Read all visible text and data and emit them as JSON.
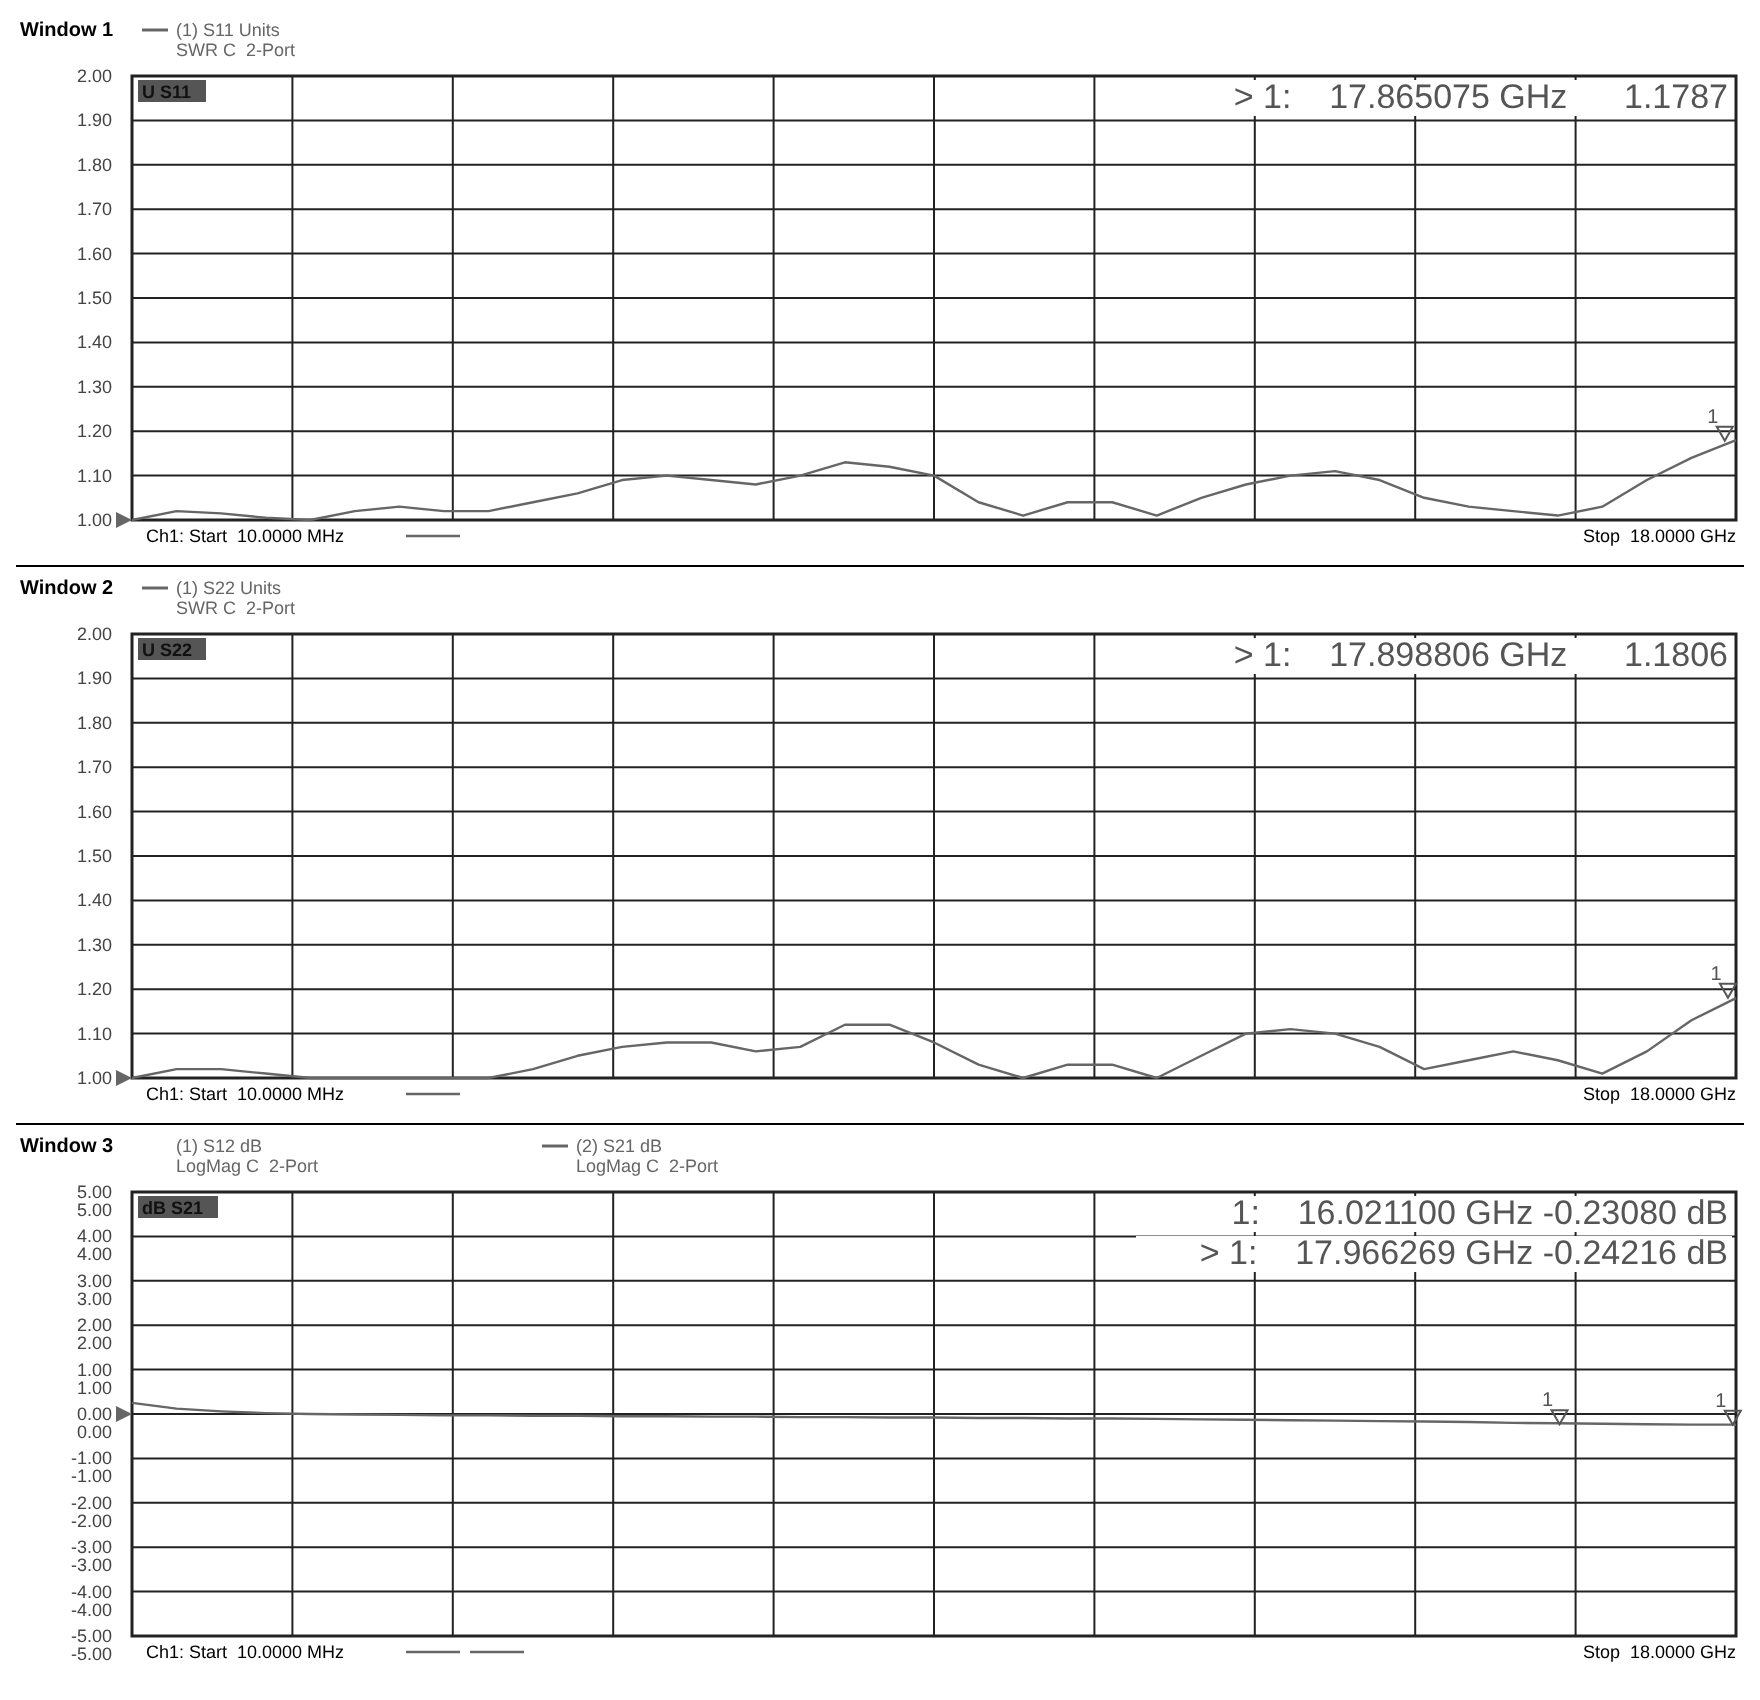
{
  "chart_data": [
    {
      "type": "line",
      "title": "Window 1",
      "categories": [
        null,
        null,
        null,
        null,
        null,
        null,
        null,
        null,
        null,
        null,
        null,
        null,
        null,
        null,
        null,
        null,
        null,
        null,
        null,
        null,
        null,
        null,
        null,
        null,
        null,
        null,
        null,
        null,
        null,
        null,
        null,
        null,
        null,
        null,
        null,
        null,
        null
      ],
      "ylim": [
        1,
        2
      ],
      "yticks": [
        {
          "value": 1,
          "label": "1.00"
        },
        {
          "value": 1.1,
          "label": "1.10"
        },
        {
          "value": 1.2,
          "label": "1.20"
        },
        {
          "value": 1.3,
          "label": "1.30"
        },
        {
          "value": 1.4,
          "label": "1.40"
        },
        {
          "value": 1.5,
          "label": "1.50"
        },
        {
          "value": 1.6,
          "label": "1.60"
        },
        {
          "value": 1.7,
          "label": "1.70"
        },
        {
          "value": 1.8,
          "label": "1.80"
        },
        {
          "value": 1.9,
          "label": "1.90"
        },
        {
          "value": 2,
          "label": "2.00"
        }
      ],
      "grid": true,
      "tick_labels": "y",
      "marker": "none",
      "line_style": "solid",
      "series": [
        {
          "name": "(1) S11 Units\nSWR C  2-Port",
          "color": "#666666",
          "values": [
            1.0,
            1.02,
            1.015,
            1.005,
            1.0,
            1.02,
            1.03,
            1.02,
            1.02,
            1.04,
            1.06,
            1.09,
            1.1,
            1.09,
            1.08,
            1.1,
            1.13,
            1.12,
            1.1,
            1.04,
            1.01,
            1.04,
            1.04,
            1.01,
            1.05,
            1.08,
            1.1,
            1.11,
            1.09,
            1.05,
            1.03,
            1.02,
            1.01,
            1.03,
            1.09,
            1.14,
            1.18
          ]
        }
      ],
      "annotations": [
        "U S11",
        "Ch1: Start  10.0000 MHz",
        "Stop  18.0000 GHz",
        "> 1:    17.865075 GHz      1.1787",
        {
          "text": "1",
          "y": 1.1787
        }
      ]
    },
    {
      "type": "line",
      "title": "Window 2",
      "categories": [
        null,
        null,
        null,
        null,
        null,
        null,
        null,
        null,
        null,
        null,
        null,
        null,
        null,
        null,
        null,
        null,
        null,
        null,
        null,
        null,
        null,
        null,
        null,
        null,
        null,
        null,
        null,
        null,
        null,
        null,
        null,
        null,
        null,
        null,
        null,
        null,
        null
      ],
      "ylim": [
        1,
        2
      ],
      "yticks": [
        {
          "value": 1,
          "label": "1.00"
        },
        {
          "value": 1.1,
          "label": "1.10"
        },
        {
          "value": 1.2,
          "label": "1.20"
        },
        {
          "value": 1.3,
          "label": "1.30"
        },
        {
          "value": 1.4,
          "label": "1.40"
        },
        {
          "value": 1.5,
          "label": "1.50"
        },
        {
          "value": 1.6,
          "label": "1.60"
        },
        {
          "value": 1.7,
          "label": "1.70"
        },
        {
          "value": 1.8,
          "label": "1.80"
        },
        {
          "value": 1.9,
          "label": "1.90"
        },
        {
          "value": 2,
          "label": "2.00"
        }
      ],
      "grid": true,
      "tick_labels": "y",
      "marker": "none",
      "line_style": "solid",
      "series": [
        {
          "name": "(1) S22 Units\nSWR C  2-Port",
          "color": "#666666",
          "values": [
            1.0,
            1.02,
            1.02,
            1.01,
            1.0,
            1.0,
            1.0,
            1.0,
            1.0,
            1.02,
            1.05,
            1.07,
            1.08,
            1.08,
            1.06,
            1.07,
            1.12,
            1.12,
            1.08,
            1.03,
            1.0,
            1.03,
            1.03,
            1.0,
            1.05,
            1.1,
            1.11,
            1.1,
            1.07,
            1.02,
            1.04,
            1.06,
            1.04,
            1.01,
            1.06,
            1.13,
            1.18
          ]
        }
      ],
      "annotations": [
        "U S22",
        "Ch1: Start  10.0000 MHz",
        "Stop  18.0000 GHz",
        "> 1:    17.898806 GHz      1.1806",
        {
          "text": "1",
          "y": 1.1806
        }
      ]
    },
    {
      "type": "line",
      "title": "Window 3",
      "categories": [
        null,
        null,
        null,
        null,
        null,
        null,
        null,
        null,
        null,
        null,
        null,
        null,
        null,
        null,
        null,
        null,
        null,
        null,
        null,
        null,
        null,
        null,
        null,
        null,
        null,
        null,
        null,
        null,
        null,
        null,
        null,
        null,
        null,
        null,
        null,
        null,
        null
      ],
      "ylim": [
        -5,
        5
      ],
      "yticks": [
        {
          "value": -5,
          "label": "-5.00"
        },
        {
          "value": -4,
          "label": "-4.00"
        },
        {
          "value": -3,
          "label": "-3.00"
        },
        {
          "value": -2,
          "label": "-2.00"
        },
        {
          "value": -1,
          "label": "-1.00"
        },
        {
          "value": 0,
          "label": "0.00"
        },
        {
          "value": 1,
          "label": "1.00"
        },
        {
          "value": 2,
          "label": "2.00"
        },
        {
          "value": 3,
          "label": "3.00"
        },
        {
          "value": 4,
          "label": "4.00"
        },
        {
          "value": 5,
          "label": "5.00"
        }
      ],
      "grid": true,
      "tick_labels": "y",
      "marker": "none",
      "line_style": "solid",
      "subtitle": "(1) S12 dB\nLogMag C  2-Port",
      "series": [
        {
          "name": "(2) S21 dB\nLogMag C  2-Port",
          "color": "#666666",
          "values": [
            0.25,
            0.12,
            0.06,
            0.02,
            0.0,
            -0.01,
            -0.02,
            -0.03,
            -0.03,
            -0.04,
            -0.04,
            -0.05,
            -0.05,
            -0.06,
            -0.06,
            -0.07,
            -0.07,
            -0.08,
            -0.08,
            -0.09,
            -0.09,
            -0.1,
            -0.1,
            -0.11,
            -0.12,
            -0.13,
            -0.14,
            -0.15,
            -0.16,
            -0.17,
            -0.18,
            -0.2,
            -0.21,
            -0.22,
            -0.23,
            -0.24,
            -0.24
          ]
        }
      ],
      "annotations": [
        "dB S21",
        "Ch1: Start  10.0000 MHz",
        "Stop  18.0000 GHz",
        "1:    16.021100 GHz -0.23080 dB",
        "> 1:    17.966269 GHz -0.24216 dB",
        {
          "text": "1",
          "y": -0.2308
        },
        {
          "text": "1",
          "y": -0.24216
        }
      ]
    }
  ]
}
